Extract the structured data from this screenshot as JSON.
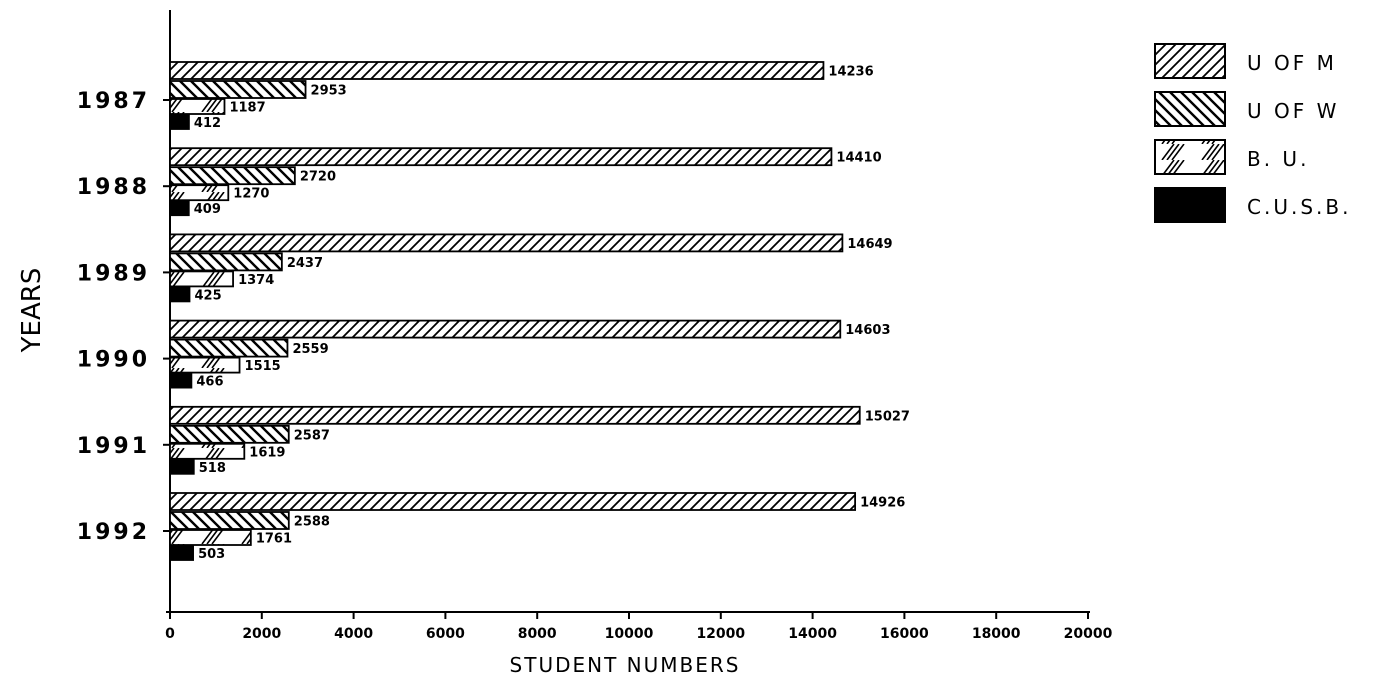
{
  "chart_data": {
    "type": "bar",
    "orientation": "horizontal",
    "categories": [
      "1987",
      "1988",
      "1989",
      "1990",
      "1991",
      "1992"
    ],
    "series": [
      {
        "name": "U OF M",
        "values": [
          14236,
          14410,
          14649,
          14603,
          15027,
          14926
        ],
        "value_labels": [
          "14236",
          "14410",
          "14649",
          "14603",
          "15027",
          "14926"
        ]
      },
      {
        "name": "U OF W",
        "values": [
          2953,
          2720,
          2437,
          2559,
          2587,
          2588
        ],
        "value_labels": [
          "2953",
          "2720",
          "2437",
          "2559",
          "2587",
          "2588"
        ]
      },
      {
        "name": "B. U.",
        "values": [
          1187,
          1270,
          1374,
          1515,
          1619,
          1761
        ],
        "value_labels": [
          "1187",
          "1270",
          "1374",
          "1515",
          "1619",
          "1761"
        ]
      },
      {
        "name": "C.U.S.B.",
        "values": [
          412,
          409,
          425,
          466,
          518,
          503
        ],
        "value_labels": [
          "412",
          "409",
          "425",
          "466",
          "518",
          "503"
        ]
      }
    ],
    "xlabel": "STUDENT NUMBERS",
    "ylabel": "YEARS",
    "xlim": [
      0,
      20000
    ],
    "xticks": [
      "0",
      "2000",
      "4000",
      "6000",
      "8000",
      "10000",
      "12000",
      "14000",
      "16000",
      "18000",
      "20000"
    ],
    "grid": false,
    "legend_position": "top-right"
  }
}
